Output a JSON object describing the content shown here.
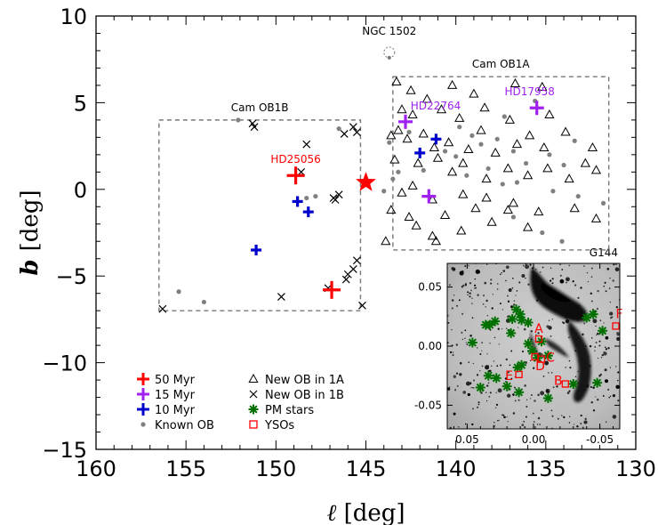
{
  "chart_data": {
    "type": "scatter",
    "xlabel_symbol": "ℓ",
    "xlabel_unit": "[deg]",
    "ylabel_symbol": "b",
    "ylabel_unit": "[deg]",
    "xlim": [
      160,
      130
    ],
    "ylim": [
      -15,
      10
    ],
    "xticks": [
      160,
      155,
      150,
      145,
      140,
      135,
      130
    ],
    "yticks": [
      10,
      5,
      0,
      -5,
      -10,
      -15
    ],
    "regions": [
      {
        "name": "Cam OB1B",
        "l_range": [
          156.5,
          145.3
        ],
        "b_range": [
          -7,
          4
        ]
      },
      {
        "name": "Cam OB1A",
        "l_range": [
          143.5,
          131.5
        ],
        "b_range": [
          -3.5,
          6.5
        ]
      }
    ],
    "ngc": {
      "label": "NGC 1502",
      "l": 143.7,
      "b": 7.9
    },
    "big_star": {
      "l": 145.0,
      "b": 0.4,
      "color": "#ff0000"
    },
    "clusters": [
      {
        "name": "HD25056",
        "l": 148.9,
        "b": 0.8,
        "age": "50 Myr",
        "labeled": true,
        "color": "#ff0000"
      },
      {
        "name": "",
        "l": 146.9,
        "b": -5.8,
        "age": "50 Myr",
        "labeled": false,
        "color": "#ff0000"
      },
      {
        "name": "HD22764",
        "l": 142.8,
        "b": 3.9,
        "age": "15 Myr",
        "labeled": true,
        "color": "#a020f0"
      },
      {
        "name": "HD17958",
        "l": 135.5,
        "b": 4.7,
        "age": "15 Myr",
        "labeled": true,
        "color": "#a020f0"
      },
      {
        "name": "",
        "l": 141.5,
        "b": -0.4,
        "age": "15 Myr",
        "labeled": false,
        "color": "#a020f0"
      },
      {
        "name": "",
        "l": 148.8,
        "b": -0.7,
        "age": "10 Myr",
        "labeled": false,
        "color": "#0000cd"
      },
      {
        "name": "",
        "l": 148.2,
        "b": -1.3,
        "age": "10 Myr",
        "labeled": false,
        "color": "#0000cd"
      },
      {
        "name": "",
        "l": 151.1,
        "b": -3.5,
        "age": "10 Myr",
        "labeled": false,
        "color": "#0000cd"
      },
      {
        "name": "",
        "l": 141.1,
        "b": 2.9,
        "age": "10 Myr",
        "labeled": false,
        "color": "#0000cd"
      },
      {
        "name": "",
        "l": 142.0,
        "b": 2.1,
        "age": "10 Myr",
        "labeled": false,
        "color": "#0000cd"
      }
    ],
    "new_ob_1a": [
      [
        143.3,
        6.2
      ],
      [
        142.5,
        5.7
      ],
      [
        141.6,
        5.2
      ],
      [
        140.2,
        6.0
      ],
      [
        139.0,
        5.5
      ],
      [
        136.7,
        6.1
      ],
      [
        135.2,
        5.9
      ],
      [
        143.0,
        4.6
      ],
      [
        142.4,
        4.3
      ],
      [
        140.8,
        4.6
      ],
      [
        139.8,
        4.1
      ],
      [
        138.4,
        4.7
      ],
      [
        137.0,
        4.0
      ],
      [
        134.8,
        4.3
      ],
      [
        143.6,
        3.1
      ],
      [
        143.2,
        3.4
      ],
      [
        142.7,
        2.9
      ],
      [
        141.8,
        3.2
      ],
      [
        141.2,
        2.4
      ],
      [
        140.4,
        2.7
      ],
      [
        139.3,
        2.3
      ],
      [
        138.6,
        3.4
      ],
      [
        137.8,
        2.1
      ],
      [
        136.6,
        2.6
      ],
      [
        135.9,
        3.1
      ],
      [
        135.1,
        2.4
      ],
      [
        133.9,
        3.3
      ],
      [
        132.4,
        2.4
      ],
      [
        143.4,
        1.7
      ],
      [
        142.1,
        1.5
      ],
      [
        141.0,
        1.8
      ],
      [
        140.2,
        1.0
      ],
      [
        139.6,
        1.5
      ],
      [
        138.3,
        0.6
      ],
      [
        137.1,
        1.2
      ],
      [
        136.0,
        0.8
      ],
      [
        134.9,
        1.2
      ],
      [
        133.7,
        0.6
      ],
      [
        132.8,
        1.5
      ],
      [
        132.2,
        1.1
      ],
      [
        143.0,
        -0.2
      ],
      [
        142.4,
        0.2
      ],
      [
        141.3,
        -0.6
      ],
      [
        139.6,
        -0.3
      ],
      [
        138.9,
        -1.1
      ],
      [
        138.3,
        -0.5
      ],
      [
        136.8,
        -0.8
      ],
      [
        135.4,
        -1.3
      ],
      [
        133.4,
        -1.1
      ],
      [
        132.2,
        -1.7
      ],
      [
        143.6,
        -1.2
      ],
      [
        142.6,
        -1.6
      ],
      [
        142.2,
        -2.1
      ],
      [
        140.6,
        -1.5
      ],
      [
        139.7,
        -2.4
      ],
      [
        138.0,
        -1.9
      ],
      [
        136.0,
        -2.2
      ],
      [
        141.3,
        -2.7
      ],
      [
        141.1,
        -3.0
      ],
      [
        143.9,
        -3.0
      ],
      [
        137.1,
        -1.2
      ]
    ],
    "new_ob_1b": [
      [
        151.2,
        3.6
      ],
      [
        151.3,
        3.8
      ],
      [
        148.3,
        2.6
      ],
      [
        146.2,
        3.2
      ],
      [
        145.7,
        3.6
      ],
      [
        145.5,
        3.3
      ],
      [
        146.7,
        -0.6
      ],
      [
        146.5,
        -0.3
      ],
      [
        146.1,
        -5.2
      ],
      [
        146.0,
        -4.9
      ],
      [
        145.5,
        -4.1
      ],
      [
        145.7,
        -4.6
      ],
      [
        149.7,
        -6.2
      ],
      [
        156.3,
        -6.9
      ],
      [
        145.2,
        -6.7
      ],
      [
        147.1,
        -5.7
      ],
      [
        148.6,
        1.0
      ],
      [
        146.8,
        -0.5
      ]
    ],
    "known_ob": [
      [
        152.1,
        4.0
      ],
      [
        155.4,
        -5.9
      ],
      [
        154.0,
        -6.5
      ],
      [
        147.8,
        -0.4
      ],
      [
        148.3,
        -0.5
      ],
      [
        146.5,
        3.5
      ],
      [
        143.7,
        2.7
      ],
      [
        142.6,
        3.3
      ],
      [
        140.6,
        2.2
      ],
      [
        140.0,
        1.9
      ],
      [
        139.1,
        3.1
      ],
      [
        138.6,
        2.6
      ],
      [
        137.7,
        2.9
      ],
      [
        136.8,
        2.2
      ],
      [
        136.1,
        1.5
      ],
      [
        134.8,
        2.0
      ],
      [
        134.0,
        1.4
      ],
      [
        133.4,
        2.8
      ],
      [
        137.3,
        4.2
      ],
      [
        135.6,
        5.1
      ],
      [
        138.2,
        1.2
      ],
      [
        136.6,
        0.4
      ],
      [
        134.6,
        -0.1
      ],
      [
        133.2,
        -0.4
      ],
      [
        131.8,
        -0.8
      ],
      [
        135.2,
        -2.5
      ],
      [
        139.8,
        3.6
      ],
      [
        141.8,
        1.1
      ],
      [
        143.2,
        1.0
      ],
      [
        139.4,
        0.8
      ],
      [
        143.5,
        0.6
      ],
      [
        144.0,
        -0.1
      ],
      [
        137.4,
        0.3
      ],
      [
        136.8,
        -1.6
      ],
      [
        134.1,
        -3.0
      ]
    ],
    "legend": {
      "col1": [
        {
          "label": "50 Myr",
          "kind": "cross",
          "color": "#ff0000"
        },
        {
          "label": "15 Myr",
          "kind": "cross",
          "color": "#a020f0"
        },
        {
          "label": "10 Myr",
          "kind": "cross",
          "color": "#0000cd"
        },
        {
          "label": "Known OB",
          "kind": "dot",
          "color": "#808080"
        }
      ],
      "col2": [
        {
          "label": "New OB in 1A",
          "kind": "triangle",
          "color": "#000000"
        },
        {
          "label": "New OB in 1B",
          "kind": "x",
          "color": "#000000"
        },
        {
          "label": "PM stars",
          "kind": "asterisk",
          "color": "#007000"
        },
        {
          "label": "YSOs",
          "kind": "square",
          "color": "#ff0000"
        }
      ]
    },
    "inset": {
      "title": "G144",
      "xlim": [
        0.065,
        -0.065
      ],
      "ylim": [
        -0.07,
        0.07
      ],
      "xticks": [
        0.05,
        0.0,
        -0.05
      ],
      "xtick_labels": [
        "0.05",
        "0.00",
        "-0.05"
      ],
      "yticks": [
        0.05,
        0.0,
        -0.05
      ],
      "ytick_labels": [
        "0.05",
        "0.00",
        "-0.05"
      ],
      "pm_stars": [
        [
          0.013,
          0.031
        ],
        [
          0.01,
          0.027
        ],
        [
          0.009,
          0.022
        ],
        [
          0.004,
          0.02
        ],
        [
          0.016,
          0.023
        ],
        [
          0.029,
          0.021
        ],
        [
          0.036,
          0.018
        ],
        [
          0.033,
          0.018
        ],
        [
          0.046,
          0.003
        ],
        [
          0.004,
          0.002
        ],
        [
          0.001,
          -0.004
        ],
        [
          -0.006,
          0.004
        ],
        [
          -0.011,
          -0.008
        ],
        [
          -0.003,
          -0.01
        ],
        [
          0.009,
          -0.016
        ],
        [
          0.012,
          -0.018
        ],
        [
          0.028,
          -0.027
        ],
        [
          0.034,
          -0.025
        ],
        [
          0.04,
          -0.035
        ],
        [
          0.02,
          -0.034
        ],
        [
          0.011,
          -0.039
        ],
        [
          -0.011,
          -0.044
        ],
        [
          -0.03,
          -0.032
        ],
        [
          -0.048,
          -0.031
        ],
        [
          -0.045,
          0.027
        ],
        [
          -0.052,
          0.013
        ],
        [
          -0.04,
          0.024
        ],
        [
          0.017,
          0.011
        ]
      ],
      "ysos": [
        {
          "label": "A",
          "x": -0.004,
          "y": 0.006
        },
        {
          "label": "B",
          "x": -0.024,
          "y": -0.032
        },
        {
          "label": "C",
          "x": -0.006,
          "y": -0.011
        },
        {
          "label": "D",
          "x": -0.001,
          "y": -0.009
        },
        {
          "label": "E",
          "x": 0.011,
          "y": -0.024
        },
        {
          "label": "F",
          "x": -0.062,
          "y": 0.017
        }
      ]
    }
  }
}
